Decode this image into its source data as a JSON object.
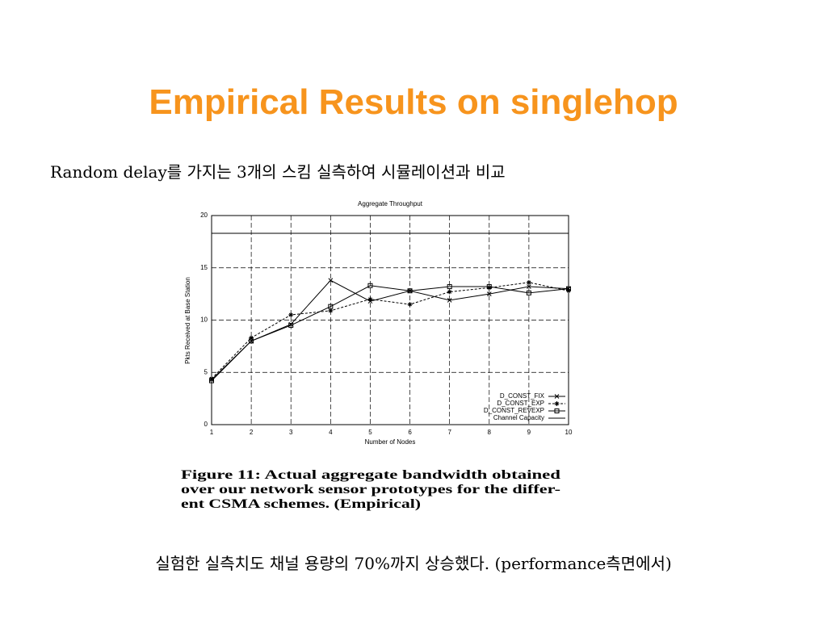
{
  "slide": {
    "title": "Empirical Results on singlehop",
    "subtitle": "Random delay를 가지는 3개의 스킴 실측하여 시뮬레이션과 비교",
    "footnote": "실험한 실측치도 채널 용량의 70%까지 상승했다. (performance측면에서)"
  },
  "chart_data": {
    "type": "line",
    "title": "Aggregate Throughput",
    "x_label": "Number of Nodes",
    "y_label": "Pkts Received at Base Station",
    "x": [
      1,
      2,
      3,
      4,
      5,
      6,
      7,
      8,
      9,
      10
    ],
    "xlim": [
      1,
      10
    ],
    "xticks": [
      1,
      2,
      3,
      4,
      5,
      6,
      7,
      8,
      9,
      10
    ],
    "ylim": [
      0,
      20
    ],
    "yticks": [
      0,
      5,
      10,
      15,
      20
    ],
    "grid": true,
    "legend": "lower right",
    "series": [
      {
        "name": "D_CONST_FIX",
        "color": "#000000",
        "marker": "x",
        "dash": false,
        "values": [
          4.3,
          8.0,
          9.6,
          13.8,
          11.8,
          12.8,
          11.9,
          12.5,
          13.2,
          13.0
        ]
      },
      {
        "name": "D_CONST_EXP",
        "color": "#000000",
        "marker": "star",
        "dash": true,
        "values": [
          4.4,
          8.3,
          10.5,
          10.9,
          12.0,
          11.5,
          12.7,
          13.1,
          13.6,
          12.8
        ]
      },
      {
        "name": "D_CONST_REVEXP",
        "color": "#000000",
        "marker": "square",
        "dash": false,
        "values": [
          4.2,
          8.0,
          9.5,
          11.3,
          13.3,
          12.8,
          13.2,
          13.2,
          12.6,
          13.0
        ]
      },
      {
        "name": "Channel Capacity",
        "color": "#000000",
        "marker": "none",
        "dash": false,
        "values": [
          18.3,
          18.3,
          18.3,
          18.3,
          18.3,
          18.3,
          18.3,
          18.3,
          18.3,
          18.3
        ]
      }
    ],
    "caption": [
      "Figure 11:  Actual aggregate bandwidth obtained",
      "over our network sensor prototypes for the differ-",
      "ent CSMA schemes. (Empirical)"
    ]
  }
}
